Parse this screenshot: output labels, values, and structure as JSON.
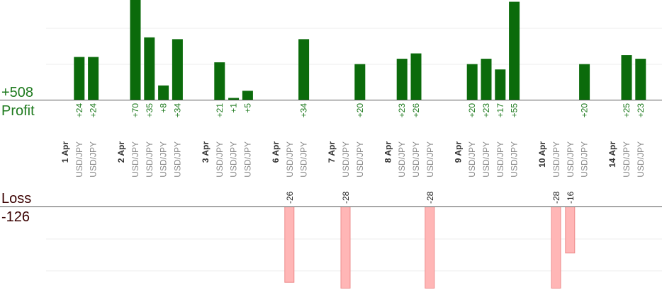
{
  "colors": {
    "profit_bar": "#0b6b0b",
    "profit_text": "#1e7a1e",
    "loss_fill": "#ffb6b6",
    "loss_stroke": "#ee8c8c",
    "loss_text": "#3a0000",
    "axis": "#555555",
    "grid": "#eeeeee"
  },
  "chart_data": {
    "type": "bar",
    "profit_label": "Profit",
    "profit_total": "+508",
    "loss_label": "Loss",
    "loss_total": "-126",
    "profit_ylim": [
      0,
      56
    ],
    "loss_ylim": [
      0,
      28
    ],
    "grid": true,
    "columns": [
      {
        "date": "1 Apr"
      },
      {
        "pair": "USD/JPY",
        "profit": 24
      },
      {
        "pair": "USD/JPY",
        "profit": 24
      },
      {},
      {
        "date": "2 Apr"
      },
      {
        "pair": "USD/JPY",
        "profit": 70
      },
      {
        "pair": "USD/JPY",
        "profit": 35
      },
      {
        "pair": "USD/JPY",
        "profit": 8
      },
      {
        "pair": "USD/JPY",
        "profit": 34
      },
      {},
      {
        "date": "3 Apr"
      },
      {
        "pair": "USD/JPY",
        "profit": 21
      },
      {
        "pair": "USD/JPY",
        "profit": 1
      },
      {
        "pair": "USD/JPY",
        "profit": 5
      },
      {},
      {
        "date": "6 Apr"
      },
      {
        "pair": "USD/JPY",
        "loss": -26
      },
      {
        "pair": "USD/JPY",
        "profit": 34
      },
      {},
      {
        "date": "7 Apr"
      },
      {
        "pair": "USD/JPY",
        "loss": -28
      },
      {
        "pair": "USD/JPY",
        "profit": 20
      },
      {},
      {
        "date": "8 Apr"
      },
      {
        "pair": "USD/JPY",
        "profit": 23
      },
      {
        "pair": "USD/JPY",
        "profit": 26
      },
      {
        "pair": "USD/JPY",
        "loss": -28
      },
      {},
      {
        "date": "9 Apr"
      },
      {
        "pair": "USD/JPY",
        "profit": 20
      },
      {
        "pair": "USD/JPY",
        "profit": 23
      },
      {
        "pair": "USD/JPY",
        "profit": 17
      },
      {
        "pair": "USD/JPY",
        "profit": 55
      },
      {},
      {
        "date": "10 Apr"
      },
      {
        "pair": "USD/JPY",
        "loss": -28
      },
      {
        "pair": "USD/JPY",
        "loss": -16
      },
      {
        "pair": "USD/JPY",
        "profit": 20
      },
      {},
      {
        "date": "14 Apr"
      },
      {
        "pair": "USD/JPY",
        "profit": 25
      },
      {
        "pair": "USD/JPY",
        "profit": 23
      }
    ]
  }
}
